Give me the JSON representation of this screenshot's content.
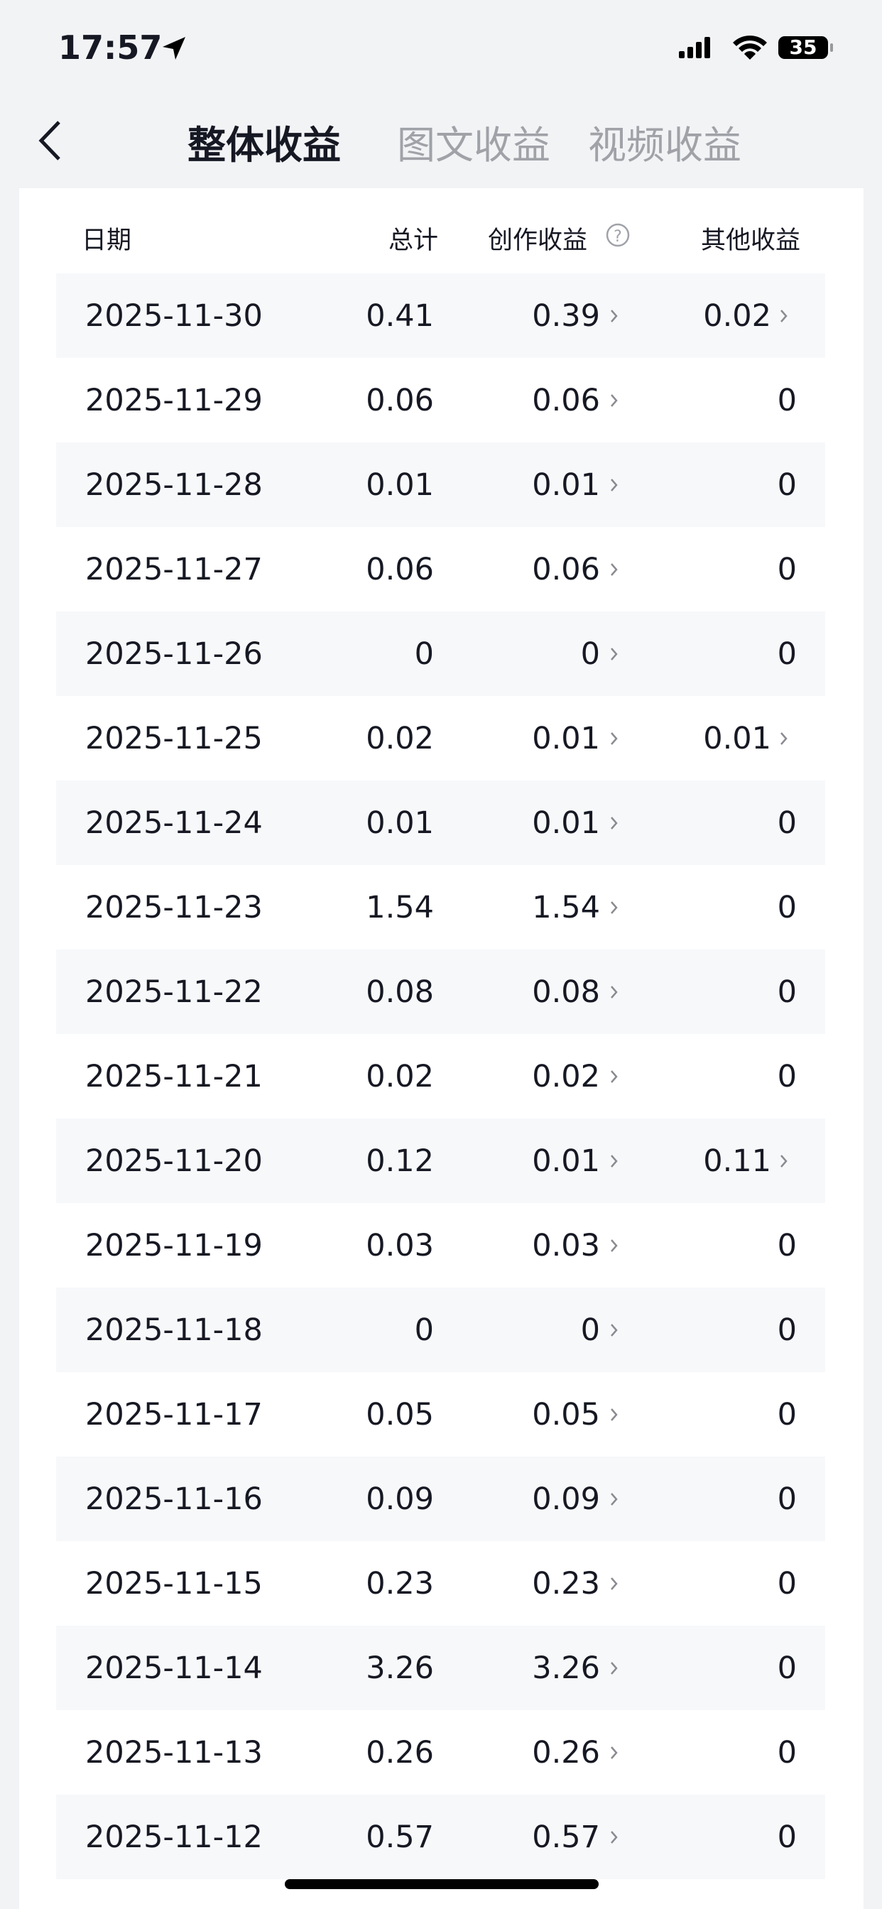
{
  "status_bar": {
    "time": "17:57",
    "battery": "35"
  },
  "tabs": [
    "整体收益",
    "图文收益",
    "视频收益"
  ],
  "table": {
    "headers": [
      "日期",
      "总计",
      "创作收益",
      "其他收益"
    ],
    "rows": [
      [
        "2025-11-30",
        "0.41",
        "0.39",
        "0.02"
      ],
      [
        "2025-11-29",
        "0.06",
        "0.06",
        "0"
      ],
      [
        "2025-11-28",
        "0.01",
        "0.01",
        "0"
      ],
      [
        "2025-11-27",
        "0.06",
        "0.06",
        "0"
      ],
      [
        "2025-11-26",
        "0",
        "0",
        "0"
      ],
      [
        "2025-11-25",
        "0.02",
        "0.01",
        "0.01"
      ],
      [
        "2025-11-24",
        "0.01",
        "0.01",
        "0"
      ],
      [
        "2025-11-23",
        "1.54",
        "1.54",
        "0"
      ],
      [
        "2025-11-22",
        "0.08",
        "0.08",
        "0"
      ],
      [
        "2025-11-21",
        "0.02",
        "0.02",
        "0"
      ],
      [
        "2025-11-20",
        "0.12",
        "0.01",
        "0.11"
      ],
      [
        "2025-11-19",
        "0.03",
        "0.03",
        "0"
      ],
      [
        "2025-11-18",
        "0",
        "0",
        "0"
      ],
      [
        "2025-11-17",
        "0.05",
        "0.05",
        "0"
      ],
      [
        "2025-11-16",
        "0.09",
        "0.09",
        "0"
      ],
      [
        "2025-11-15",
        "0.23",
        "0.23",
        "0"
      ],
      [
        "2025-11-14",
        "3.26",
        "3.26",
        "0"
      ],
      [
        "2025-11-13",
        "0.26",
        "0.26",
        "0"
      ],
      [
        "2025-11-12",
        "0.57",
        "0.57",
        "0"
      ]
    ]
  }
}
